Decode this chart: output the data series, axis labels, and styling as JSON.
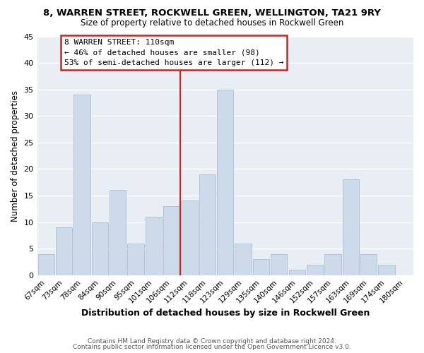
{
  "title": "8, WARREN STREET, ROCKWELL GREEN, WELLINGTON, TA21 9RY",
  "subtitle": "Size of property relative to detached houses in Rockwell Green",
  "xlabel": "Distribution of detached houses by size in Rockwell Green",
  "ylabel": "Number of detached properties",
  "bar_labels": [
    "67sqm",
    "73sqm",
    "78sqm",
    "84sqm",
    "90sqm",
    "95sqm",
    "101sqm",
    "106sqm",
    "112sqm",
    "118sqm",
    "123sqm",
    "129sqm",
    "135sqm",
    "140sqm",
    "146sqm",
    "152sqm",
    "157sqm",
    "163sqm",
    "169sqm",
    "174sqm",
    "180sqm"
  ],
  "bar_values": [
    4,
    9,
    34,
    10,
    16,
    6,
    11,
    13,
    14,
    19,
    35,
    6,
    3,
    4,
    1,
    2,
    4,
    18,
    4,
    2,
    0
  ],
  "bar_color": "#cddaea",
  "bar_edge_color": "#b0c4d8",
  "vline_x_idx": 8,
  "vline_label": "8 WARREN STREET: 110sqm",
  "annotation_line1": "← 46% of detached houses are smaller (98)",
  "annotation_line2": "53% of semi-detached houses are larger (112) →",
  "annotation_box_color": "#ffffff",
  "annotation_box_edge": "#cc2222",
  "vline_color": "#cc2222",
  "ylim": [
    0,
    45
  ],
  "yticks": [
    0,
    5,
    10,
    15,
    20,
    25,
    30,
    35,
    40,
    45
  ],
  "bg_color": "#ffffff",
  "plot_bg_color": "#e8eef4",
  "grid_color": "#ffffff",
  "footer1": "Contains HM Land Registry data © Crown copyright and database right 2024.",
  "footer2": "Contains public sector information licensed under the Open Government Licence v3.0."
}
